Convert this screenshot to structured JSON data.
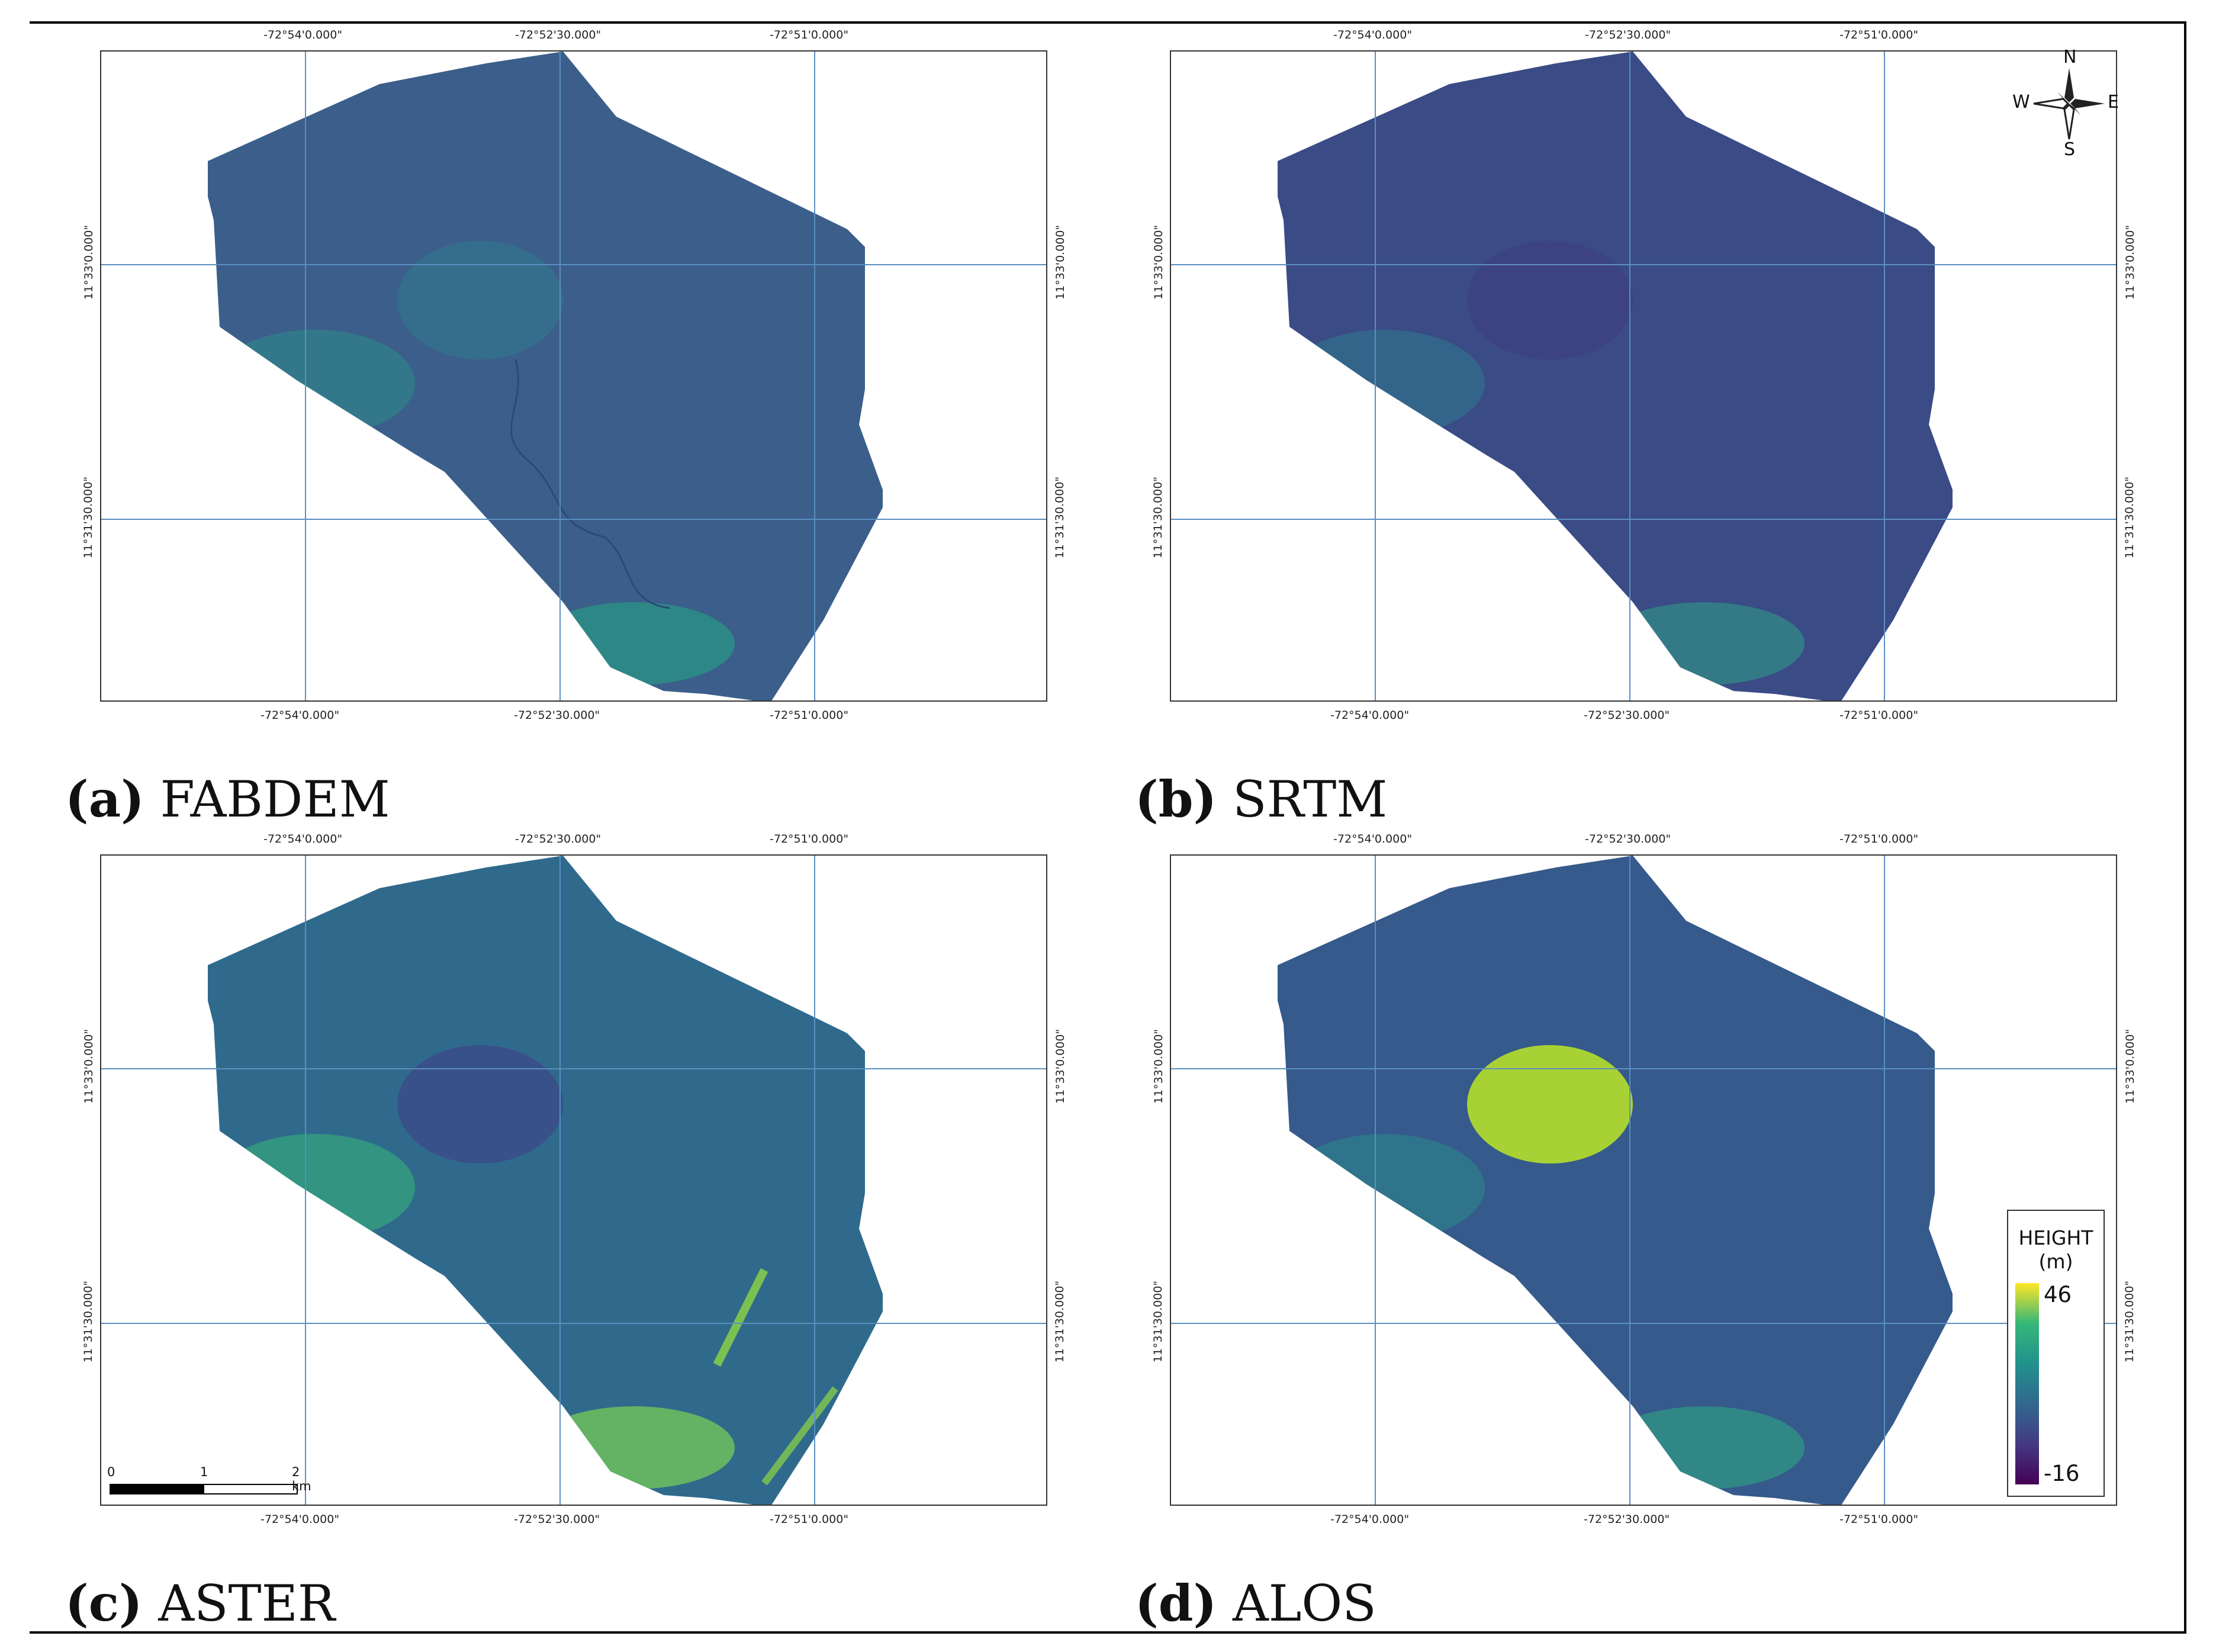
{
  "panels": [
    {
      "id": "a",
      "letter": "(a)",
      "name": "FABDEM",
      "fill_color": "#3b5f8a",
      "accent_patches": [
        {
          "color": "#2e8c8a",
          "opacity": 0.55
        },
        {
          "color": "#25a284",
          "opacity": 0.6
        },
        {
          "color": "#2f7e8d",
          "opacity": 0.5
        }
      ],
      "top_lon_labels": [
        "-72°54'0.000\"",
        "-72°52'30.000\"",
        "-72°51'0.000\""
      ],
      "bottom_lon_labels": [
        "-72°54'0.000\"",
        "-72°52'30.000\"",
        "-72°51'0.000\""
      ],
      "lat_labels": [
        "11°33'0.000\"",
        "11°31'30.000\""
      ]
    },
    {
      "id": "b",
      "letter": "(b)",
      "name": "SRTM",
      "fill_color": "#3a4b86",
      "accent_patches": [
        {
          "color": "#2b7f8e",
          "opacity": 0.5
        },
        {
          "color": "#2ea387",
          "opacity": 0.55
        },
        {
          "color": "#3e3c81",
          "opacity": 0.6
        }
      ],
      "top_lon_labels": [
        "-72°54'0.000\"",
        "-72°52'30.000\"",
        "-72°51'0.000\""
      ],
      "bottom_lon_labels": [
        "-72°54'0.000\"",
        "-72°52'30.000\"",
        "-72°51'0.000\""
      ],
      "lat_labels": [
        "11°33'0.000\"",
        "11°31'30.000\""
      ]
    },
    {
      "id": "c",
      "letter": "(c)",
      "name": "ASTER",
      "fill_color": "#2f6a8c",
      "accent_patches": [
        {
          "color": "#35b779",
          "opacity": 0.55
        },
        {
          "color": "#7ad151",
          "opacity": 0.7
        },
        {
          "color": "#3b4f8a",
          "opacity": 0.9
        }
      ],
      "top_lon_labels": [
        "-72°54'0.000\"",
        "-72°52'30.000\"",
        "-72°51'0.000\""
      ],
      "bottom_lon_labels": [
        "-72°54'0.000\"",
        "-72°52'30.000\"",
        "-72°51'0.000\""
      ],
      "lat_labels": [
        "11°33'0.000\"",
        "11°31'30.000\""
      ]
    },
    {
      "id": "d",
      "letter": "(d)",
      "name": "ALOS",
      "fill_color": "#355a8b",
      "accent_patches": [
        {
          "color": "#2a8e8b",
          "opacity": 0.5
        },
        {
          "color": "#2fa584",
          "opacity": 0.6
        },
        {
          "color": "#b5de2b",
          "opacity": 0.9
        }
      ],
      "top_lon_labels": [
        "-72°54'0.000\"",
        "-72°52'30.000\"",
        "-72°51'0.000\""
      ],
      "bottom_lon_labels": [
        "-72°54'0.000\"",
        "-72°52'30.000\"",
        "-72°51'0.000\""
      ],
      "lat_labels": [
        "11°33'0.000\"",
        "11°31'30.000\""
      ]
    }
  ],
  "compass": {
    "n": "N",
    "s": "S",
    "e": "E",
    "w": "W"
  },
  "legend": {
    "title_line1": "HEIGHT",
    "title_line2": "(m)",
    "max": "46",
    "min": "-16",
    "ramp_colors": [
      "#fde725",
      "#35b779",
      "#21918c",
      "#31688e",
      "#443983",
      "#440154"
    ]
  },
  "scalebar": {
    "labels": [
      "0",
      "1",
      "2 km"
    ]
  },
  "colors": {
    "graticule": "#5b8fc2",
    "frame": "#333333",
    "river": "#2a4a78"
  }
}
